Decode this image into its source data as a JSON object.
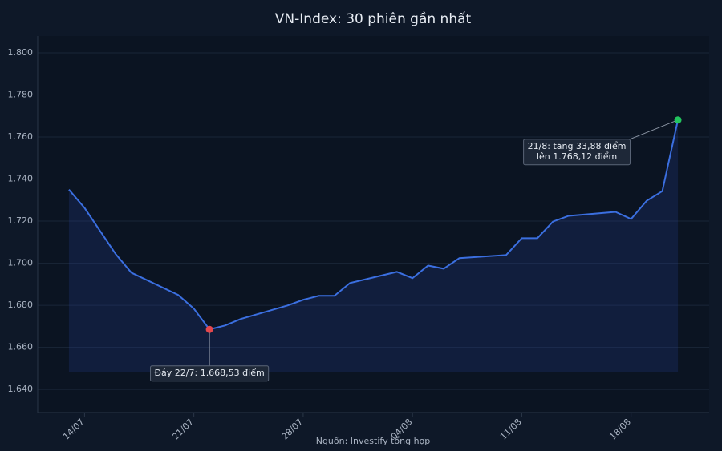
{
  "chart_data": {
    "type": "line",
    "title": "VN-Index: 30 phiên gần nhất",
    "source": "Nguồn: Investify tổng hợp",
    "x": [
      "13/07",
      "14/07",
      "15/07",
      "16/07",
      "17/07",
      "20/07",
      "21/07",
      "22/07",
      "23/07",
      "24/07",
      "27/07",
      "28/07",
      "29/07",
      "30/07",
      "31/07",
      "03/08",
      "04/08",
      "05/08",
      "06/08",
      "07/08",
      "10/08",
      "11/08",
      "12/08",
      "13/08",
      "14/08",
      "17/08",
      "18/08",
      "19/08",
      "20/08",
      "21/08"
    ],
    "series": [
      {
        "name": "VN-Index",
        "color": "#3b6fe0",
        "values": [
          1735.0,
          1726.3,
          1715.3,
          1704.3,
          1695.5,
          1684.9,
          1678.4,
          1668.53,
          1670.4,
          1673.5,
          1679.9,
          1682.6,
          1684.5,
          1684.5,
          1690.6,
          1695.9,
          1692.9,
          1698.9,
          1697.4,
          1702.4,
          1703.9,
          1711.9,
          1711.9,
          1719.8,
          1722.5,
          1724.4,
          1721.0,
          1729.7,
          1734.24,
          1768.12
        ]
      }
    ],
    "xlim": [
      "11/07",
      "23/08"
    ],
    "xticks": [
      "14/07",
      "21/07",
      "28/07",
      "04/08",
      "11/08",
      "18/08"
    ],
    "ylim": [
      1629,
      1808
    ],
    "yticks": [
      {
        "value": 1640,
        "label": "1.640"
      },
      {
        "value": 1660,
        "label": "1.660"
      },
      {
        "value": 1680,
        "label": "1.680"
      },
      {
        "value": 1700,
        "label": "1.700"
      },
      {
        "value": 1720,
        "label": "1.720"
      },
      {
        "value": 1740,
        "label": "1.740"
      },
      {
        "value": 1760,
        "label": "1.760"
      },
      {
        "value": 1780,
        "label": "1.780"
      },
      {
        "value": 1800,
        "label": "1.800"
      }
    ],
    "grid": true,
    "annotations": [
      {
        "x": "22/07",
        "color": "#e5484d",
        "lines": [
          "Đáy 22/7: 1.668,53 điểm"
        ]
      },
      {
        "x": "21/08",
        "color": "#22c55e",
        "lines": [
          "21/8: tăng 33,88 điểm",
          "lên 1.768,12 điểm"
        ]
      }
    ]
  }
}
